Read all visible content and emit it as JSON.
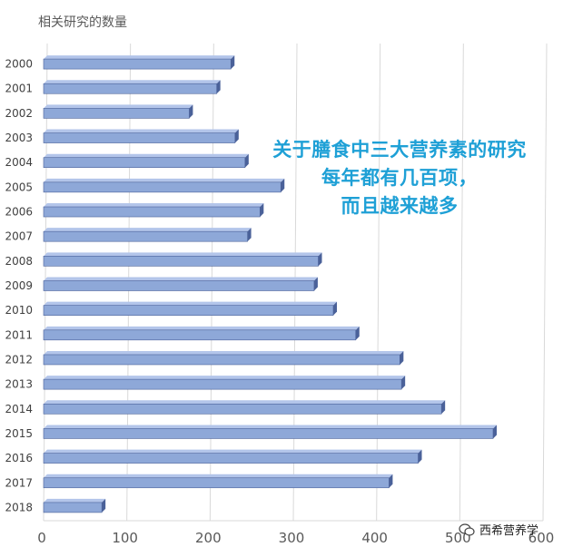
{
  "chart_data": {
    "type": "bar",
    "orientation": "horizontal",
    "title": "相关研究的数量",
    "categories": [
      "2000",
      "2001",
      "2002",
      "2003",
      "2004",
      "2005",
      "2006",
      "2007",
      "2008",
      "2009",
      "2010",
      "2011",
      "2012",
      "2013",
      "2014",
      "2015",
      "2016",
      "2017",
      "2018"
    ],
    "values": [
      225,
      208,
      175,
      230,
      242,
      285,
      260,
      245,
      330,
      325,
      348,
      375,
      428,
      430,
      478,
      540,
      450,
      415,
      70
    ],
    "xlim": [
      0,
      600
    ],
    "xticks": [
      "0",
      "100",
      "200",
      "300",
      "400",
      "500",
      "600"
    ],
    "grid": "vertical",
    "bar_color": "#8ea8d8",
    "bar_edge_color": "#4a6199"
  },
  "annotation": {
    "lines": [
      "关于膳食中三大营养素的研究",
      "每年都有几百项，",
      "而且越来越多"
    ],
    "color": "#1ea0d6"
  },
  "watermark": {
    "text": "西希营养学",
    "icon": "wechat-icon"
  }
}
